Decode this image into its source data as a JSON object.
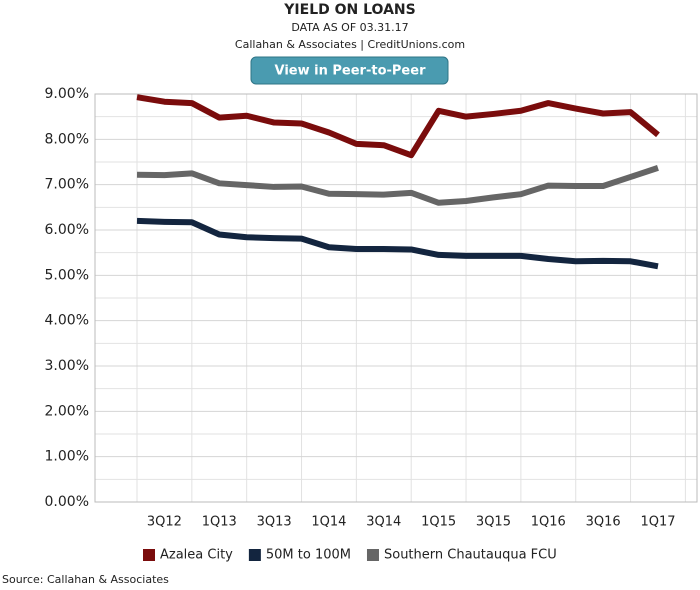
{
  "header": {
    "title": "YIELD ON LOANS",
    "subtitle": "DATA AS OF 03.31.17",
    "credit": "Callahan & Associates | CreditUnions.com",
    "button": "View in Peer-to-Peer"
  },
  "chart_data": {
    "type": "line",
    "categories": [
      null,
      "3Q12",
      null,
      "1Q13",
      null,
      "3Q13",
      null,
      "1Q14",
      null,
      "3Q14",
      null,
      "1Q15",
      null,
      "3Q15",
      null,
      "1Q16",
      null,
      "3Q16",
      null,
      "1Q17"
    ],
    "series": [
      {
        "name": "Azalea City",
        "color": "#7a0c0c",
        "values": [
          8.93,
          8.83,
          8.8,
          8.48,
          8.52,
          8.37,
          8.35,
          8.15,
          7.9,
          7.87,
          7.65,
          8.63,
          8.5,
          8.56,
          8.63,
          8.8,
          8.68,
          8.57,
          8.6,
          8.1
        ]
      },
      {
        "name": "50M to 100M",
        "color": "#13253f",
        "values": [
          6.2,
          6.18,
          6.17,
          5.9,
          5.84,
          5.82,
          5.81,
          5.62,
          5.58,
          5.58,
          5.57,
          5.45,
          5.43,
          5.43,
          5.43,
          5.36,
          5.31,
          5.32,
          5.31,
          5.2
        ]
      },
      {
        "name": "Southern Chautauqua FCU",
        "color": "#666666",
        "values": [
          7.22,
          7.21,
          7.25,
          7.03,
          6.99,
          6.95,
          6.96,
          6.8,
          6.79,
          6.78,
          6.82,
          6.6,
          6.64,
          6.72,
          6.79,
          6.98,
          6.97,
          6.97,
          7.17,
          7.37
        ]
      }
    ],
    "ylim": [
      0,
      9
    ],
    "yticks": [
      {
        "value": 0,
        "label": "0.00%"
      },
      {
        "value": 1,
        "label": "1.00%"
      },
      {
        "value": 2,
        "label": "2.00%"
      },
      {
        "value": 3,
        "label": "3.00%"
      },
      {
        "value": 4,
        "label": "4.00%"
      },
      {
        "value": 5,
        "label": "5.00%"
      },
      {
        "value": 6,
        "label": "6.00%"
      },
      {
        "value": 7,
        "label": "7.00%"
      },
      {
        "value": 8,
        "label": "8.00%"
      },
      {
        "value": 9,
        "label": "9.00%"
      }
    ],
    "minor_yticks": [
      0.5,
      1.5,
      2.5,
      3.5,
      4.5,
      5.5,
      6.5,
      7.5,
      8.5
    ],
    "grid": true,
    "legend": "bottom"
  },
  "source": "Source: Callahan & Associates"
}
